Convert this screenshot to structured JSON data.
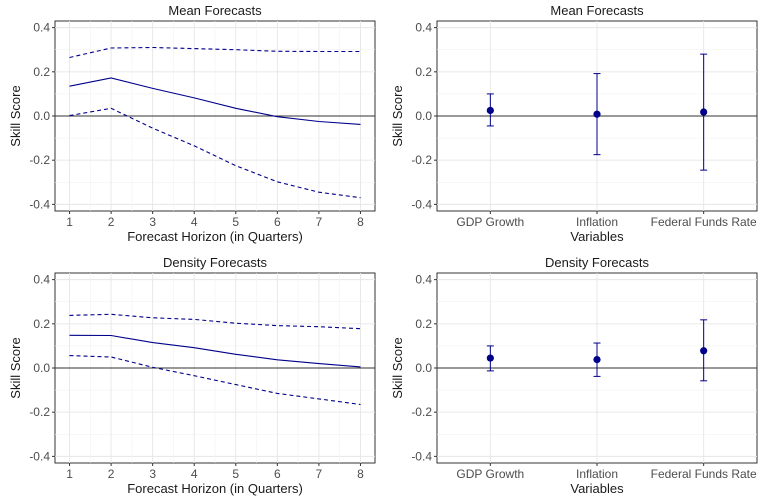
{
  "colors": {
    "series": "#00008B",
    "zero_line": "#333333",
    "frame": "#333333"
  },
  "chart_data": [
    {
      "type": "line",
      "title": "Mean Forecasts",
      "xlabel": "Forecast Horizon (in Quarters)",
      "ylabel": "Skill Score",
      "x": [
        1,
        2,
        3,
        4,
        5,
        6,
        7,
        8
      ],
      "x_tick_labels": [
        "1",
        "2",
        "3",
        "4",
        "5",
        "6",
        "7",
        "8"
      ],
      "xlim": [
        0.65,
        8.35
      ],
      "ylim": [
        -0.43,
        0.43
      ],
      "y_ticks": [
        -0.4,
        -0.2,
        0.0,
        0.2,
        0.4
      ],
      "y_tick_labels": [
        "-0.4",
        "-0.2",
        "0.0",
        "0.2",
        "0.4"
      ],
      "grid": true,
      "series": [
        {
          "role": "estimate",
          "style": "solid",
          "values": [
            0.135,
            0.172,
            0.125,
            0.082,
            0.035,
            -0.003,
            -0.025,
            -0.038
          ]
        },
        {
          "role": "upper",
          "style": "dashed",
          "values": [
            0.265,
            0.308,
            0.31,
            0.305,
            0.3,
            0.293,
            0.292,
            0.292
          ]
        },
        {
          "role": "lower",
          "style": "dashed",
          "values": [
            0.002,
            0.035,
            -0.055,
            -0.135,
            -0.225,
            -0.298,
            -0.345,
            -0.37
          ]
        }
      ]
    },
    {
      "type": "errorbar",
      "title": "Mean Forecasts",
      "xlabel": "Variables",
      "ylabel": "Skill Score",
      "categories": [
        "GDP Growth",
        "Inflation",
        "Federal Funds Rate"
      ],
      "values": [
        0.025,
        0.008,
        0.018
      ],
      "lower": [
        -0.045,
        -0.175,
        -0.245
      ],
      "upper": [
        0.1,
        0.192,
        0.28
      ],
      "ylim": [
        -0.43,
        0.43
      ],
      "y_ticks": [
        -0.4,
        -0.2,
        0.0,
        0.2,
        0.4
      ],
      "y_tick_labels": [
        "-0.4",
        "-0.2",
        "0.0",
        "0.2",
        "0.4"
      ],
      "grid": true
    },
    {
      "type": "line",
      "title": "Density Forecasts",
      "xlabel": "Forecast Horizon (in Quarters)",
      "ylabel": "Skill Score",
      "x": [
        1,
        2,
        3,
        4,
        5,
        6,
        7,
        8
      ],
      "x_tick_labels": [
        "1",
        "2",
        "3",
        "4",
        "5",
        "6",
        "7",
        "8"
      ],
      "xlim": [
        0.65,
        8.35
      ],
      "ylim": [
        -0.43,
        0.43
      ],
      "y_ticks": [
        -0.4,
        -0.2,
        0.0,
        0.2,
        0.4
      ],
      "y_tick_labels": [
        "-0.4",
        "-0.2",
        "0.0",
        "0.2",
        "0.4"
      ],
      "grid": true,
      "series": [
        {
          "role": "estimate",
          "style": "solid",
          "values": [
            0.148,
            0.147,
            0.115,
            0.092,
            0.062,
            0.037,
            0.02,
            0.005
          ]
        },
        {
          "role": "upper",
          "style": "dashed",
          "values": [
            0.238,
            0.243,
            0.227,
            0.22,
            0.203,
            0.192,
            0.187,
            0.178
          ]
        },
        {
          "role": "lower",
          "style": "dashed",
          "values": [
            0.056,
            0.05,
            0.003,
            -0.035,
            -0.075,
            -0.115,
            -0.14,
            -0.165
          ]
        }
      ]
    },
    {
      "type": "errorbar",
      "title": "Density Forecasts",
      "xlabel": "Variables",
      "ylabel": "Skill Score",
      "categories": [
        "GDP Growth",
        "Inflation",
        "Federal Funds Rate"
      ],
      "values": [
        0.045,
        0.038,
        0.078
      ],
      "lower": [
        -0.013,
        -0.038,
        -0.058
      ],
      "upper": [
        0.1,
        0.113,
        0.218
      ],
      "ylim": [
        -0.43,
        0.43
      ],
      "y_ticks": [
        -0.4,
        -0.2,
        0.0,
        0.2,
        0.4
      ],
      "y_tick_labels": [
        "-0.4",
        "-0.2",
        "0.0",
        "0.2",
        "0.4"
      ],
      "grid": true
    }
  ]
}
